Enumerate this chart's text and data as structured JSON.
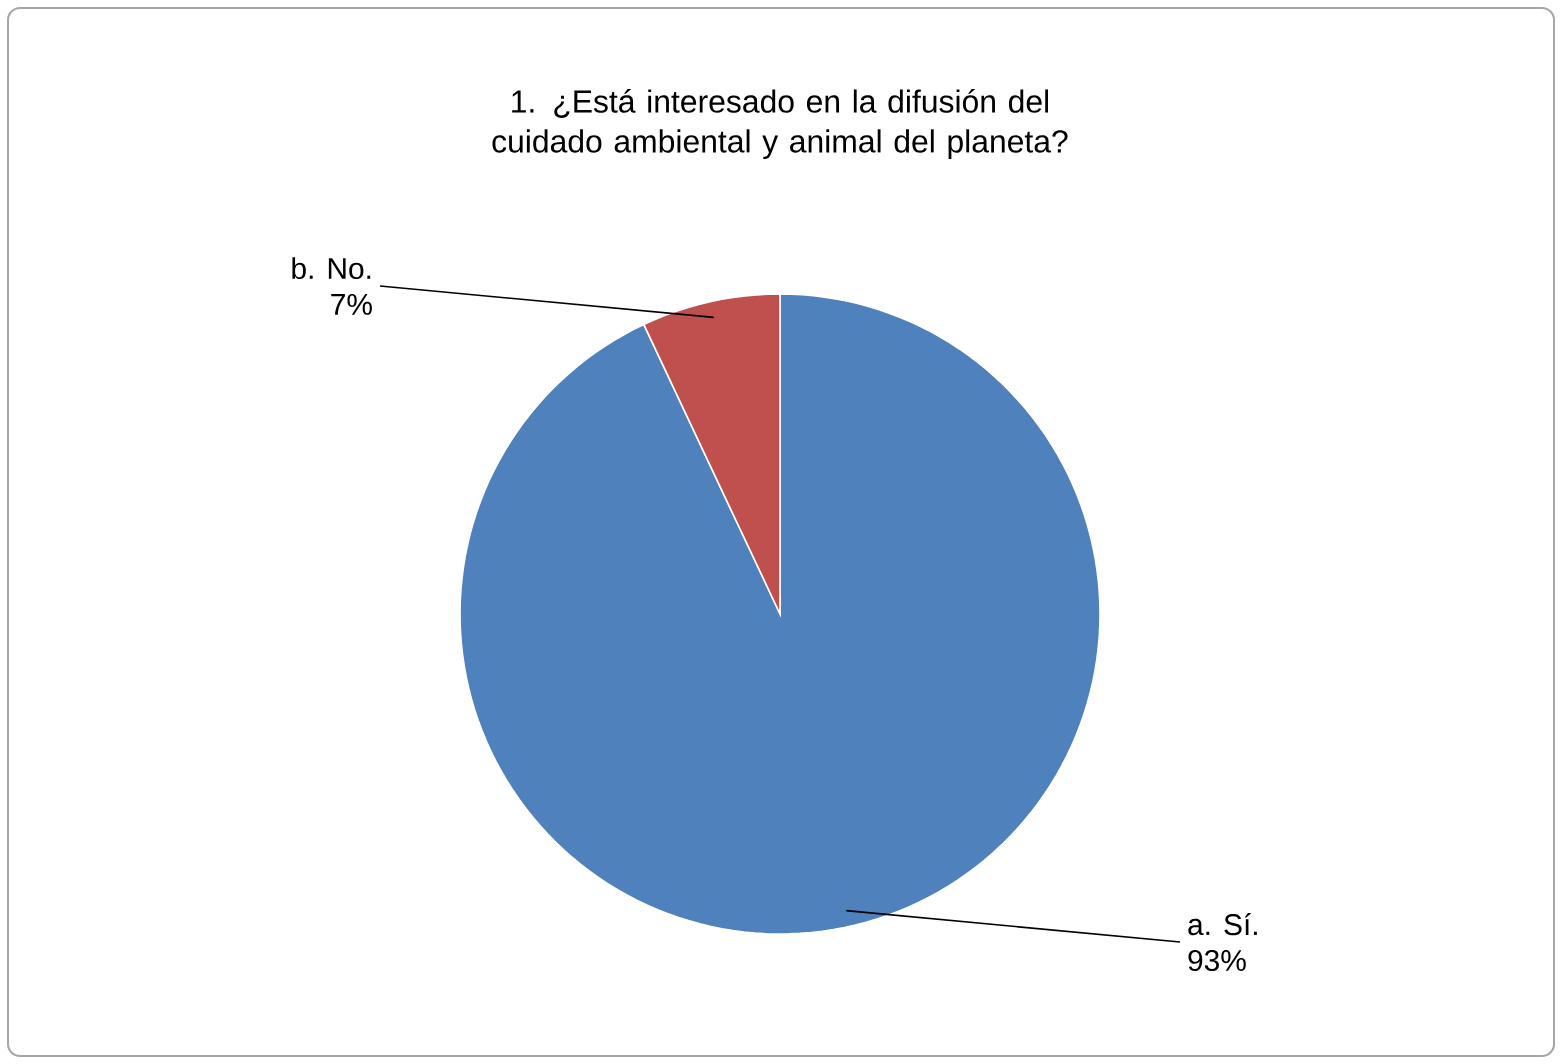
{
  "chart_data": {
    "type": "pie",
    "title": "1. ¿Está interesado en la difusión del cuidado ambiental y animal del planeta?",
    "categories": [
      "a. Sí.",
      "b. No."
    ],
    "values": [
      93,
      7
    ],
    "value_labels": [
      "93%",
      "7%"
    ],
    "colors": [
      "#4f81bd",
      "#c0504d"
    ]
  }
}
